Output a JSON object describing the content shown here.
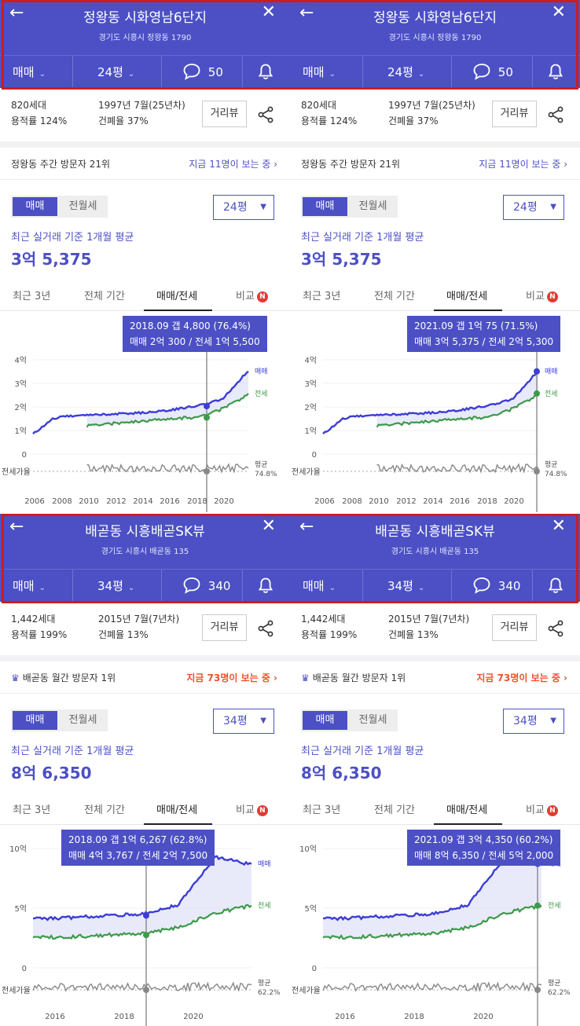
{
  "panels": [
    {
      "header": {
        "title": "정왕동 시화영남6단지",
        "address": "경기도 시흥시 정왕동 1790",
        "trade_type": "매매",
        "size": "24평",
        "comments": "50"
      },
      "info": {
        "households": "820세대",
        "built": "1997년 7월(25년차)",
        "far": "용적률 124%",
        "bcr": "건폐율 37%",
        "dist_button": "거리뷰"
      },
      "visit": {
        "text": "정왕동 주간 방문자 21위",
        "link": "지금 11명이 보는 중 ›",
        "crown": false,
        "hot": false
      },
      "price": {
        "toggle_on": "매매",
        "toggle_off": "전월세",
        "size_select": "24평",
        "avg_label": "최근 실거래 기준 1개월 평균",
        "avg_value": "3억 5,375"
      },
      "tabs": [
        "최근 3년",
        "전체 기간",
        "매매/전세",
        "비교"
      ],
      "tooltip": {
        "line1": "2018.09  갭 4,800 (76.4%)",
        "line2": "매매 2억 300 / 전세 1억 5,500"
      },
      "chart": {
        "y_labels": [
          "4억",
          "3억",
          "2억",
          "1억",
          "0"
        ],
        "x_labels": [
          "2006",
          "2008",
          "2010",
          "2012",
          "2014",
          "2016",
          "2018",
          "2020"
        ],
        "series_sale": "매매",
        "series_jeonse": "전세",
        "ratio_label": "전세가율",
        "avg_label": "평균",
        "avg_value": "74.8%"
      }
    },
    {
      "header": {
        "title": "정왕동 시화영남6단지",
        "address": "경기도 시흥시 정왕동 1790",
        "trade_type": "매매",
        "size": "24평",
        "comments": "50"
      },
      "info": {
        "households": "820세대",
        "built": "1997년 7월(25년차)",
        "far": "용적률 124%",
        "bcr": "건폐율 37%",
        "dist_button": "거리뷰"
      },
      "visit": {
        "text": "정왕동 주간 방문자 21위",
        "link": "지금 11명이 보는 중 ›",
        "crown": false,
        "hot": false
      },
      "price": {
        "toggle_on": "매매",
        "toggle_off": "전월세",
        "size_select": "24평",
        "avg_label": "최근 실거래 기준 1개월 평균",
        "avg_value": "3억 5,375"
      },
      "tabs": [
        "최근 3년",
        "전체 기간",
        "매매/전세",
        "비교"
      ],
      "tooltip": {
        "line1": "2021.09  갭 1억 75 (71.5%)",
        "line2": "매매 3억 5,375 / 전세 2억 5,300"
      },
      "chart": {
        "y_labels": [
          "4억",
          "3억",
          "2억",
          "1억",
          "0"
        ],
        "x_labels": [
          "2006",
          "2008",
          "2010",
          "2012",
          "2014",
          "2016",
          "2018",
          "2020"
        ],
        "series_sale": "매매",
        "series_jeonse": "전세",
        "ratio_label": "전세가율",
        "avg_label": "평균",
        "avg_value": "74.8%"
      }
    },
    {
      "header": {
        "title": "배곧동 시흥배곧SK뷰",
        "address": "경기도 시흥시 배곧동 135",
        "trade_type": "매매",
        "size": "34평",
        "comments": "340"
      },
      "info": {
        "households": "1,442세대",
        "built": "2015년 7월(7년차)",
        "far": "용적률 199%",
        "bcr": "건폐율 13%",
        "dist_button": "거리뷰"
      },
      "visit": {
        "text": "배곧동 월간 방문자 1위",
        "link": "지금 73명이 보는 중 ›",
        "crown": true,
        "hot": true
      },
      "price": {
        "toggle_on": "매매",
        "toggle_off": "전월세",
        "size_select": "34평",
        "avg_label": "최근 실거래 기준 1개월 평균",
        "avg_value": "8억 6,350"
      },
      "tabs": [
        "최근 3년",
        "전체 기간",
        "매매/전세",
        "비교"
      ],
      "tooltip": {
        "line1": "2018.09  갭 1억 6,267 (62.8%)",
        "line2": "매매 4억 3,767 / 전세 2억 7,500"
      },
      "chart": {
        "y_labels": [
          "10억",
          "5억",
          "0"
        ],
        "x_labels": [
          "2016",
          "2018",
          "2020"
        ],
        "series_sale": "매매",
        "series_jeonse": "전세",
        "ratio_label": "전세가율",
        "avg_label": "평균",
        "avg_value": "62.2%"
      }
    },
    {
      "header": {
        "title": "배곧동 시흥배곧SK뷰",
        "address": "경기도 시흥시 배곧동 135",
        "trade_type": "매매",
        "size": "34평",
        "comments": "340"
      },
      "info": {
        "households": "1,442세대",
        "built": "2015년 7월(7년차)",
        "far": "용적률 199%",
        "bcr": "건폐율 13%",
        "dist_button": "거리뷰"
      },
      "visit": {
        "text": "배곧동 월간 방문자 1위",
        "link": "지금 73명이 보는 중 ›",
        "crown": true,
        "hot": true
      },
      "price": {
        "toggle_on": "매매",
        "toggle_off": "전월세",
        "size_select": "34평",
        "avg_label": "최근 실거래 기준 1개월 평균",
        "avg_value": "8억 6,350"
      },
      "tabs": [
        "최근 3년",
        "전체 기간",
        "매매/전세",
        "비교"
      ],
      "tooltip": {
        "line1": "2021.09  갭 3억 4,350 (60.2%)",
        "line2": "매매 8억 6,350 / 전세 5억 2,000"
      },
      "chart": {
        "y_labels": [
          "10억",
          "5억",
          "0"
        ],
        "x_labels": [
          "2016",
          "2018",
          "2020"
        ],
        "series_sale": "매매",
        "series_jeonse": "전세",
        "ratio_label": "전세가율",
        "avg_label": "평균",
        "avg_value": "62.2%"
      }
    }
  ],
  "chart_data": [
    {
      "type": "line",
      "x": [
        "2006",
        "2008",
        "2010",
        "2012",
        "2014",
        "2016",
        "2018",
        "2020",
        "2021.09"
      ],
      "series": [
        {
          "name": "매매",
          "values": [
            0.85,
            1.6,
            1.65,
            1.7,
            1.75,
            1.85,
            2.03,
            2.3,
            3.54
          ]
        },
        {
          "name": "전세",
          "values": [
            null,
            null,
            1.2,
            1.3,
            1.4,
            1.5,
            1.55,
            1.9,
            2.53
          ]
        }
      ],
      "ylim": [
        0,
        4
      ],
      "ylabel": "",
      "marker": {
        "x": "2018.09",
        "sale": 2.03,
        "jeonse": 1.55,
        "ratio": 76.4
      },
      "ratio_avg": 74.8
    },
    {
      "type": "line",
      "x": [
        "2016",
        "2017",
        "2018",
        "2019",
        "2020",
        "2021",
        "2021.09"
      ],
      "series": [
        {
          "name": "매매",
          "values": [
            4.1,
            4.2,
            4.38,
            4.5,
            5.3,
            9.3,
            8.64
          ]
        },
        {
          "name": "전세",
          "values": [
            2.5,
            2.6,
            2.75,
            2.9,
            3.4,
            4.6,
            5.2
          ]
        }
      ],
      "ylim": [
        0,
        10
      ],
      "ylabel": "",
      "marker": {
        "x": "2018.09",
        "sale": 4.38,
        "jeonse": 2.75,
        "ratio": 62.8
      },
      "ratio_avg": 62.2
    }
  ],
  "colors": {
    "header_bg": "#4c50c4",
    "sale": "#3c3dd6",
    "jeonse": "#3d9a4a",
    "ratio": "#888888",
    "hot": "#f0502a",
    "frame": "#cc1d1d"
  }
}
